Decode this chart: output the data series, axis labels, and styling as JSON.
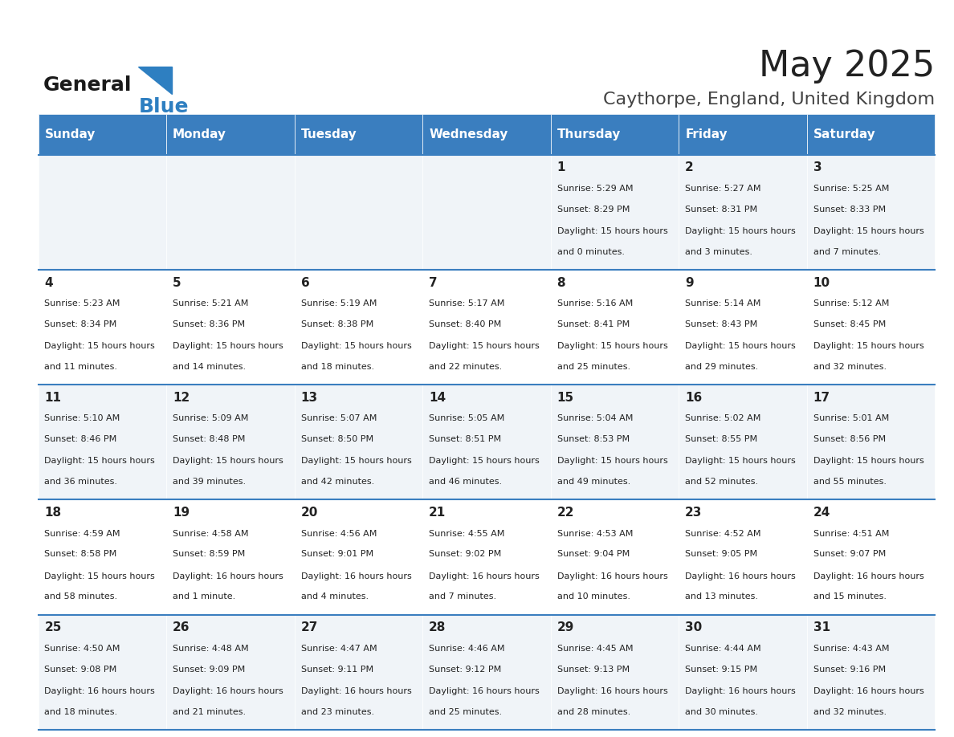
{
  "title": "May 2025",
  "subtitle": "Caythorpe, England, United Kingdom",
  "days_of_week": [
    "Sunday",
    "Monday",
    "Tuesday",
    "Wednesday",
    "Thursday",
    "Friday",
    "Saturday"
  ],
  "header_bg": "#3a7ebf",
  "header_text": "#ffffff",
  "row_bg_odd": "#f0f4f8",
  "row_bg_even": "#ffffff",
  "cell_text_color": "#222222",
  "divider_color": "#3a7ebf",
  "title_color": "#222222",
  "subtitle_color": "#444444",
  "logo_general_color": "#1a1a1a",
  "logo_blue_color": "#2e7fc1",
  "calendar_data": [
    {
      "day": 1,
      "col": 4,
      "row": 0,
      "sunrise": "5:29 AM",
      "sunset": "8:29 PM",
      "daylight": "15 hours and 0 minutes."
    },
    {
      "day": 2,
      "col": 5,
      "row": 0,
      "sunrise": "5:27 AM",
      "sunset": "8:31 PM",
      "daylight": "15 hours and 3 minutes."
    },
    {
      "day": 3,
      "col": 6,
      "row": 0,
      "sunrise": "5:25 AM",
      "sunset": "8:33 PM",
      "daylight": "15 hours and 7 minutes."
    },
    {
      "day": 4,
      "col": 0,
      "row": 1,
      "sunrise": "5:23 AM",
      "sunset": "8:34 PM",
      "daylight": "15 hours and 11 minutes."
    },
    {
      "day": 5,
      "col": 1,
      "row": 1,
      "sunrise": "5:21 AM",
      "sunset": "8:36 PM",
      "daylight": "15 hours and 14 minutes."
    },
    {
      "day": 6,
      "col": 2,
      "row": 1,
      "sunrise": "5:19 AM",
      "sunset": "8:38 PM",
      "daylight": "15 hours and 18 minutes."
    },
    {
      "day": 7,
      "col": 3,
      "row": 1,
      "sunrise": "5:17 AM",
      "sunset": "8:40 PM",
      "daylight": "15 hours and 22 minutes."
    },
    {
      "day": 8,
      "col": 4,
      "row": 1,
      "sunrise": "5:16 AM",
      "sunset": "8:41 PM",
      "daylight": "15 hours and 25 minutes."
    },
    {
      "day": 9,
      "col": 5,
      "row": 1,
      "sunrise": "5:14 AM",
      "sunset": "8:43 PM",
      "daylight": "15 hours and 29 minutes."
    },
    {
      "day": 10,
      "col": 6,
      "row": 1,
      "sunrise": "5:12 AM",
      "sunset": "8:45 PM",
      "daylight": "15 hours and 32 minutes."
    },
    {
      "day": 11,
      "col": 0,
      "row": 2,
      "sunrise": "5:10 AM",
      "sunset": "8:46 PM",
      "daylight": "15 hours and 36 minutes."
    },
    {
      "day": 12,
      "col": 1,
      "row": 2,
      "sunrise": "5:09 AM",
      "sunset": "8:48 PM",
      "daylight": "15 hours and 39 minutes."
    },
    {
      "day": 13,
      "col": 2,
      "row": 2,
      "sunrise": "5:07 AM",
      "sunset": "8:50 PM",
      "daylight": "15 hours and 42 minutes."
    },
    {
      "day": 14,
      "col": 3,
      "row": 2,
      "sunrise": "5:05 AM",
      "sunset": "8:51 PM",
      "daylight": "15 hours and 46 minutes."
    },
    {
      "day": 15,
      "col": 4,
      "row": 2,
      "sunrise": "5:04 AM",
      "sunset": "8:53 PM",
      "daylight": "15 hours and 49 minutes."
    },
    {
      "day": 16,
      "col": 5,
      "row": 2,
      "sunrise": "5:02 AM",
      "sunset": "8:55 PM",
      "daylight": "15 hours and 52 minutes."
    },
    {
      "day": 17,
      "col": 6,
      "row": 2,
      "sunrise": "5:01 AM",
      "sunset": "8:56 PM",
      "daylight": "15 hours and 55 minutes."
    },
    {
      "day": 18,
      "col": 0,
      "row": 3,
      "sunrise": "4:59 AM",
      "sunset": "8:58 PM",
      "daylight": "15 hours and 58 minutes."
    },
    {
      "day": 19,
      "col": 1,
      "row": 3,
      "sunrise": "4:58 AM",
      "sunset": "8:59 PM",
      "daylight": "16 hours and 1 minute."
    },
    {
      "day": 20,
      "col": 2,
      "row": 3,
      "sunrise": "4:56 AM",
      "sunset": "9:01 PM",
      "daylight": "16 hours and 4 minutes."
    },
    {
      "day": 21,
      "col": 3,
      "row": 3,
      "sunrise": "4:55 AM",
      "sunset": "9:02 PM",
      "daylight": "16 hours and 7 minutes."
    },
    {
      "day": 22,
      "col": 4,
      "row": 3,
      "sunrise": "4:53 AM",
      "sunset": "9:04 PM",
      "daylight": "16 hours and 10 minutes."
    },
    {
      "day": 23,
      "col": 5,
      "row": 3,
      "sunrise": "4:52 AM",
      "sunset": "9:05 PM",
      "daylight": "16 hours and 13 minutes."
    },
    {
      "day": 24,
      "col": 6,
      "row": 3,
      "sunrise": "4:51 AM",
      "sunset": "9:07 PM",
      "daylight": "16 hours and 15 minutes."
    },
    {
      "day": 25,
      "col": 0,
      "row": 4,
      "sunrise": "4:50 AM",
      "sunset": "9:08 PM",
      "daylight": "16 hours and 18 minutes."
    },
    {
      "day": 26,
      "col": 1,
      "row": 4,
      "sunrise": "4:48 AM",
      "sunset": "9:09 PM",
      "daylight": "16 hours and 21 minutes."
    },
    {
      "day": 27,
      "col": 2,
      "row": 4,
      "sunrise": "4:47 AM",
      "sunset": "9:11 PM",
      "daylight": "16 hours and 23 minutes."
    },
    {
      "day": 28,
      "col": 3,
      "row": 4,
      "sunrise": "4:46 AM",
      "sunset": "9:12 PM",
      "daylight": "16 hours and 25 minutes."
    },
    {
      "day": 29,
      "col": 4,
      "row": 4,
      "sunrise": "4:45 AM",
      "sunset": "9:13 PM",
      "daylight": "16 hours and 28 minutes."
    },
    {
      "day": 30,
      "col": 5,
      "row": 4,
      "sunrise": "4:44 AM",
      "sunset": "9:15 PM",
      "daylight": "16 hours and 30 minutes."
    },
    {
      "day": 31,
      "col": 6,
      "row": 4,
      "sunrise": "4:43 AM",
      "sunset": "9:16 PM",
      "daylight": "16 hours and 32 minutes."
    }
  ]
}
